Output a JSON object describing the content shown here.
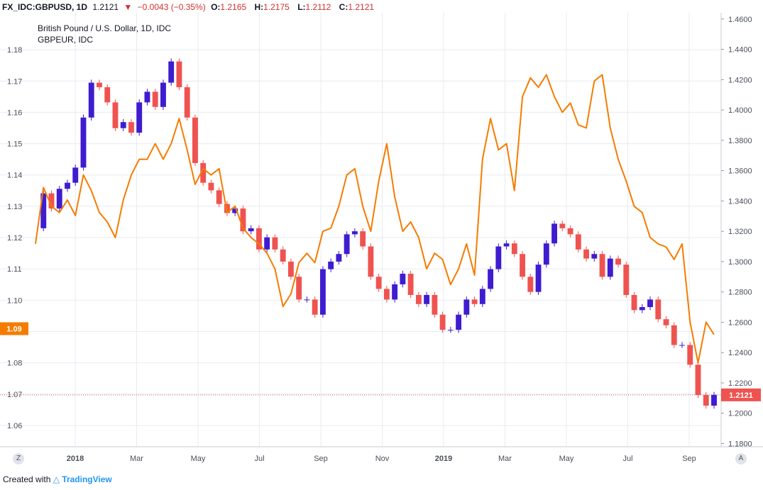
{
  "header": {
    "symbol": "FX_IDC:GBPUSD, 1D",
    "price": "1.2121",
    "change": "−0.0043 (−0.35%)",
    "open_label": "O:",
    "open": "1.2165",
    "high_label": "H:",
    "high": "1.2175",
    "low_label": "L:",
    "low": "1.2112",
    "close_label": "C:",
    "close": "1.2121"
  },
  "legend": {
    "title": "British Pound / U.S. Dollar, 1D, IDC",
    "overlay": "GBPEUR, IDC"
  },
  "buttons": {
    "zoom": "Z",
    "auto": "A"
  },
  "footer": {
    "created_with": "Created with",
    "brand": "TradingView"
  },
  "colors": {
    "up": "#3f1ccf",
    "down": "#ef5350",
    "overlay": "#f57c00",
    "grid": "#e8ebf0",
    "price_badge": "#ef5350",
    "overlay_badge": "#f57c00"
  },
  "chart_data": {
    "type": "line",
    "x_ticks": [
      "2018",
      "Mar",
      "May",
      "Jul",
      "Sep",
      "Nov",
      "2019",
      "Mar",
      "May",
      "Jul",
      "Sep"
    ],
    "x_ticks_bold": [
      "2018",
      "2019"
    ],
    "left_axis": {
      "ticks": [
        "1.18",
        "1.17",
        "1.16",
        "1.15",
        "1.14",
        "1.13",
        "1.12",
        "1.11",
        "1.10",
        "1.09",
        "1.08",
        "1.07",
        "1.06"
      ],
      "range": [
        1.0532,
        1.1918
      ]
    },
    "right_axis": {
      "ticks": [
        "1.4600",
        "1.4400",
        "1.4200",
        "1.4000",
        "1.3800",
        "1.3600",
        "1.3400",
        "1.3200",
        "1.3000",
        "1.2800",
        "1.2600",
        "1.2400",
        "1.2200",
        "1.2000",
        "1.1800"
      ],
      "range": [
        1.1779,
        1.4641
      ]
    },
    "last_price_right": "1.2121",
    "last_price_left": "1.09",
    "series": [
      {
        "name": "GBPUSD",
        "kind": "candlestick",
        "axis": "right",
        "x": [
          0,
          1,
          2,
          3,
          4,
          5,
          6,
          7,
          8,
          9,
          10,
          11,
          12,
          13,
          14,
          15,
          16,
          17,
          18,
          19,
          20,
          21,
          22,
          23,
          24,
          25,
          26,
          27,
          28,
          29,
          30,
          31,
          32,
          33,
          34,
          35,
          36,
          37,
          38,
          39,
          40,
          41,
          42,
          43,
          44,
          45,
          46,
          47,
          48,
          49,
          50,
          51,
          52,
          53,
          54,
          55,
          56,
          57,
          58,
          59,
          60,
          61,
          62,
          63,
          64,
          65,
          66,
          67,
          68,
          69,
          70,
          71,
          72,
          73,
          74,
          75,
          76,
          77,
          78,
          79,
          80,
          81,
          82,
          83,
          84,
          85
        ],
        "values": [
          1.322,
          1.345,
          1.335,
          1.348,
          1.352,
          1.362,
          1.395,
          1.418,
          1.415,
          1.405,
          1.388,
          1.392,
          1.385,
          1.405,
          1.412,
          1.402,
          1.418,
          1.432,
          1.415,
          1.395,
          1.365,
          1.352,
          1.347,
          1.338,
          1.332,
          1.335,
          1.32,
          1.322,
          1.308,
          1.316,
          1.308,
          1.3,
          1.29,
          1.275,
          1.275,
          1.265,
          1.295,
          1.3,
          1.305,
          1.318,
          1.32,
          1.31,
          1.29,
          1.282,
          1.275,
          1.285,
          1.292,
          1.278,
          1.272,
          1.278,
          1.265,
          1.255,
          1.255,
          1.265,
          1.275,
          1.272,
          1.282,
          1.295,
          1.31,
          1.312,
          1.305,
          1.29,
          1.28,
          1.298,
          1.312,
          1.325,
          1.322,
          1.318,
          1.308,
          1.302,
          1.305,
          1.29,
          1.302,
          1.298,
          1.278,
          1.268,
          1.27,
          1.275,
          1.262,
          1.258,
          1.245,
          1.245,
          1.232,
          1.212,
          1.205,
          1.2121
        ]
      },
      {
        "name": "GBPEUR",
        "kind": "line",
        "axis": "left",
        "x": [
          0,
          1,
          2,
          3,
          4,
          5,
          6,
          7,
          8,
          9,
          10,
          11,
          12,
          13,
          14,
          15,
          16,
          17,
          18,
          19,
          20,
          21,
          22,
          23,
          24,
          25,
          26,
          27,
          28,
          29,
          30,
          31,
          32,
          33,
          34,
          35,
          36,
          37,
          38,
          39,
          40,
          41,
          42,
          43,
          44,
          45,
          46,
          47,
          48,
          49,
          50,
          51,
          52,
          53,
          54,
          55,
          56,
          57,
          58,
          59,
          60,
          61,
          62,
          63,
          64,
          65,
          66,
          67,
          68,
          69,
          70,
          71,
          72,
          73,
          74,
          75,
          76,
          77,
          78,
          79,
          80,
          81,
          82,
          83,
          84,
          85
        ],
        "values": [
          1.118,
          1.136,
          1.13,
          1.128,
          1.132,
          1.127,
          1.14,
          1.135,
          1.128,
          1.125,
          1.12,
          1.132,
          1.14,
          1.145,
          1.145,
          1.15,
          1.145,
          1.15,
          1.158,
          1.148,
          1.137,
          1.142,
          1.14,
          1.142,
          1.128,
          1.13,
          1.123,
          1.12,
          1.118,
          1.115,
          1.11,
          1.098,
          1.102,
          1.112,
          1.115,
          1.112,
          1.122,
          1.123,
          1.13,
          1.14,
          1.142,
          1.13,
          1.122,
          1.138,
          1.15,
          1.133,
          1.122,
          1.125,
          1.12,
          1.11,
          1.115,
          1.113,
          1.105,
          1.11,
          1.118,
          1.108,
          1.145,
          1.158,
          1.148,
          1.15,
          1.135,
          1.165,
          1.171,
          1.168,
          1.172,
          1.165,
          1.16,
          1.163,
          1.156,
          1.155,
          1.17,
          1.172,
          1.155,
          1.145,
          1.138,
          1.13,
          1.128,
          1.12,
          1.118,
          1.117,
          1.113,
          1.118,
          1.093,
          1.08,
          1.093,
          1.089
        ]
      }
    ]
  }
}
